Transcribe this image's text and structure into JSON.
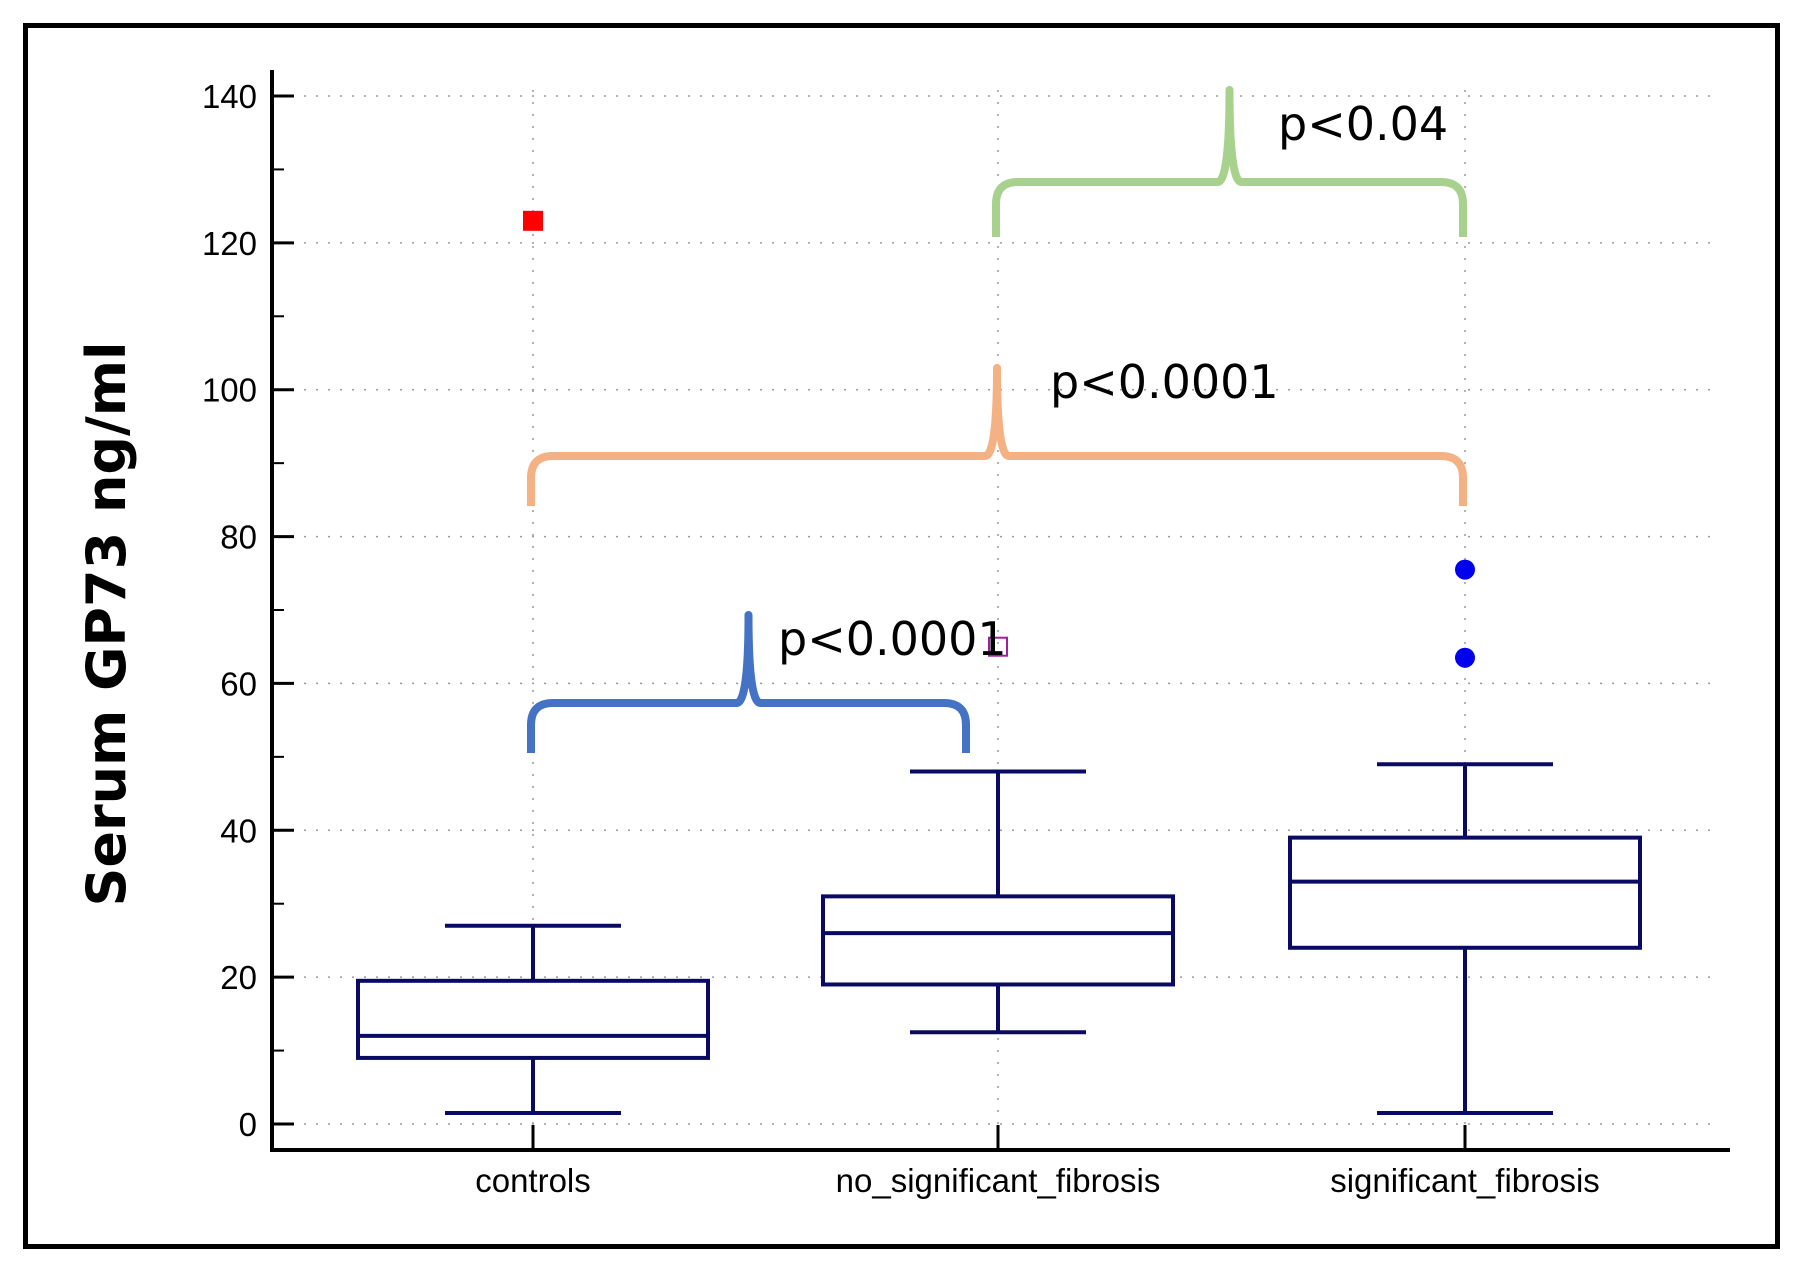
{
  "chart_data": {
    "type": "box",
    "title": "",
    "xlabel": "",
    "ylabel": "Serum GP73 ng/ml",
    "ylim": [
      0,
      140
    ],
    "yticks": [
      0,
      20,
      40,
      60,
      80,
      100,
      120,
      140
    ],
    "ytick_labels": [
      "0",
      "20",
      "40",
      "60",
      "80",
      "100",
      "120",
      "140"
    ],
    "grid": true,
    "categories": [
      "controls",
      "no_significant_fibrosis",
      "significant_fibrosis"
    ],
    "boxes": [
      {
        "name": "controls",
        "whisker_low": 1.5,
        "q1": 9,
        "median": 12,
        "q3": 19.5,
        "whisker_high": 27
      },
      {
        "name": "no_significant_fibrosis",
        "whisker_low": 12.5,
        "q1": 19,
        "median": 26,
        "q3": 31,
        "whisker_high": 48
      },
      {
        "name": "significant_fibrosis",
        "whisker_low": 1.5,
        "q1": 24,
        "median": 33,
        "q3": 39,
        "whisker_high": 49
      }
    ],
    "outliers": [
      {
        "category": "controls",
        "value": 123,
        "marker": "filled-square",
        "color": "#ff0000"
      },
      {
        "category": "no_significant_fibrosis",
        "value": 65,
        "marker": "open-square",
        "color": "#a020a0"
      },
      {
        "category": "significant_fibrosis",
        "value": 75.5,
        "marker": "filled-circle",
        "color": "#0000ee"
      },
      {
        "category": "significant_fibrosis",
        "value": 63.5,
        "marker": "filled-circle",
        "color": "#0000ee"
      }
    ],
    "annotations": [
      {
        "text": "p<0.0001",
        "from": "controls",
        "to": "no_significant_fibrosis",
        "color": "#4472c4"
      },
      {
        "text": "p<0.0001",
        "from": "controls",
        "to": "significant_fibrosis",
        "color": "#f4b183"
      },
      {
        "text": "p<0.04",
        "from": "no_significant_fibrosis",
        "to": "significant_fibrosis",
        "color": "#a9d18e"
      }
    ],
    "box_color": "#0a0a64"
  }
}
